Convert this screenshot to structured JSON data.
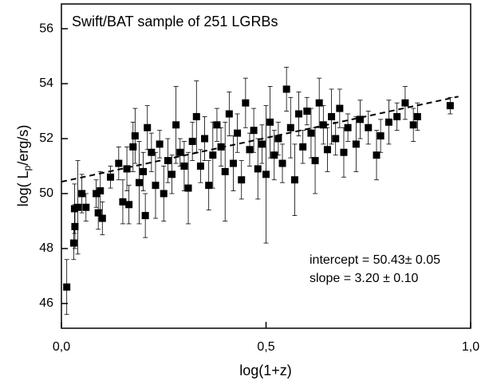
{
  "chart_data": {
    "type": "scatter",
    "title": "Swift/BAT sample of 251 LGRBs",
    "x_label": "log(1+z)",
    "y_label": [
      "log( L",
      "p",
      "/erg/s)"
    ],
    "annotations": [
      "intercept = 50.43± 0.05",
      "slope = 3.20 ± 0.10"
    ],
    "color": "#000000",
    "xlim": [
      0,
      1
    ],
    "ylim": [
      45.1,
      56.9
    ],
    "xticks": [
      {
        "value": 0,
        "label": "0,0"
      },
      {
        "value": 0.5,
        "label": "0,5"
      },
      {
        "value": 1,
        "label": "1,0"
      }
    ],
    "yticks": [
      46,
      48,
      50,
      52,
      54,
      56
    ],
    "fit_line": {
      "x": [
        0,
        0.97
      ],
      "values": [
        50.43,
        53.53
      ]
    },
    "x": [
      0.013,
      0.03,
      0.033,
      0.032,
      0.04,
      0.05,
      0.06,
      0.085,
      0.09,
      0.095,
      0.1,
      0.12,
      0.14,
      0.15,
      0.16,
      0.165,
      0.175,
      0.18,
      0.19,
      0.2,
      0.205,
      0.21,
      0.22,
      0.23,
      0.24,
      0.25,
      0.26,
      0.27,
      0.28,
      0.29,
      0.3,
      0.31,
      0.32,
      0.33,
      0.34,
      0.35,
      0.36,
      0.37,
      0.38,
      0.39,
      0.4,
      0.41,
      0.42,
      0.43,
      0.44,
      0.45,
      0.46,
      0.47,
      0.48,
      0.49,
      0.5,
      0.51,
      0.52,
      0.53,
      0.54,
      0.55,
      0.56,
      0.57,
      0.58,
      0.59,
      0.6,
      0.61,
      0.62,
      0.63,
      0.64,
      0.65,
      0.66,
      0.67,
      0.68,
      0.69,
      0.7,
      0.72,
      0.73,
      0.75,
      0.77,
      0.78,
      0.8,
      0.82,
      0.84,
      0.86,
      0.87,
      0.95
    ],
    "values": [
      46.6,
      48.2,
      48.8,
      49.45,
      49.5,
      50.0,
      49.5,
      50.0,
      49.3,
      50.1,
      49.1,
      50.6,
      51.1,
      49.7,
      50.9,
      49.6,
      51.7,
      52.1,
      50.4,
      50.8,
      49.2,
      52.4,
      51.5,
      50.3,
      51.8,
      50.0,
      51.2,
      50.7,
      52.5,
      51.5,
      51.0,
      50.2,
      51.9,
      52.8,
      51.0,
      52.0,
      50.3,
      51.4,
      52.5,
      51.7,
      50.8,
      52.9,
      51.1,
      52.2,
      50.5,
      53.3,
      51.6,
      52.3,
      50.9,
      51.8,
      50.7,
      52.6,
      51.4,
      52.0,
      51.1,
      53.8,
      52.4,
      50.5,
      52.9,
      51.7,
      53.0,
      52.2,
      51.2,
      53.3,
      52.5,
      51.6,
      52.8,
      52.0,
      53.1,
      51.5,
      52.4,
      51.8,
      52.7,
      52.4,
      51.4,
      52.1,
      52.6,
      52.8,
      53.3,
      52.5,
      52.8,
      53.2
    ],
    "errors": [
      1.0,
      0.6,
      0.8,
      0.9,
      1.7,
      0.7,
      0.5,
      0.5,
      0.6,
      0.7,
      0.6,
      0.4,
      0.6,
      0.8,
      0.8,
      0.7,
      0.9,
      1.0,
      1.5,
      0.7,
      0.8,
      0.8,
      0.7,
      1.2,
      0.5,
      1.0,
      0.8,
      0.7,
      1.4,
      0.5,
      0.9,
      1.3,
      0.7,
      1.3,
      0.6,
      0.8,
      0.9,
      1.2,
      0.6,
      0.7,
      1.8,
      0.8,
      1.0,
      0.7,
      0.7,
      0.9,
      0.6,
      0.8,
      1.1,
      0.7,
      2.5,
      1.3,
      0.9,
      0.6,
      0.7,
      0.8,
      1.1,
      1.3,
      0.8,
      0.6,
      0.5,
      0.9,
      1.2,
      0.9,
      0.7,
      0.8,
      1.0,
      0.6,
      0.7,
      0.9,
      0.5,
      1.0,
      0.7,
      0.6,
      0.9,
      0.6,
      0.8,
      0.5,
      0.6,
      0.6,
      0.5,
      0.3
    ]
  }
}
